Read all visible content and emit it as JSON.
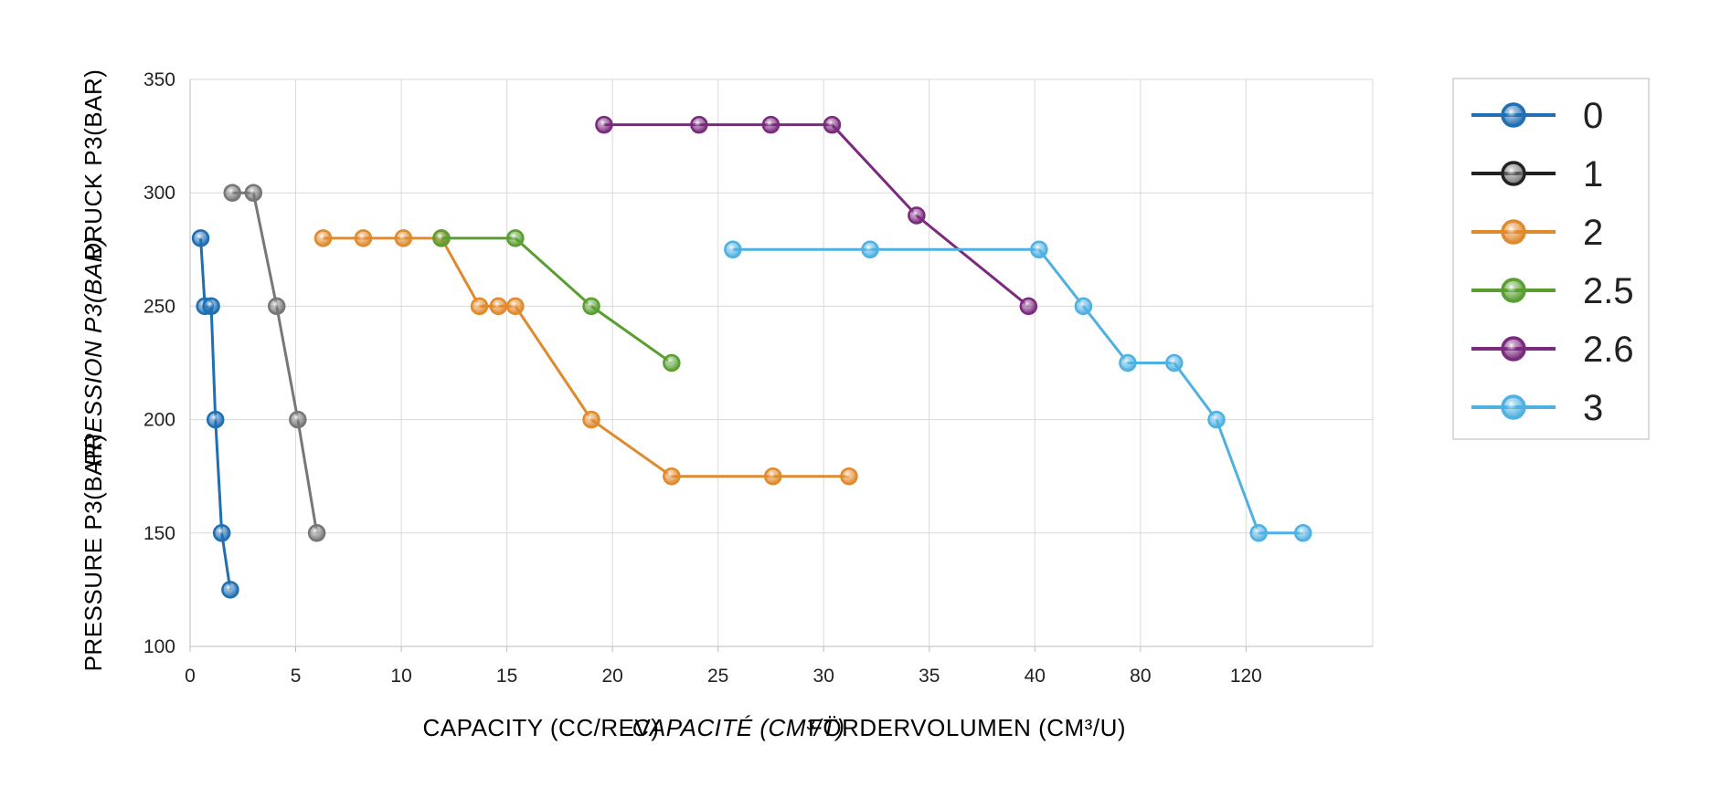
{
  "chart_data": {
    "type": "line",
    "title": "",
    "ylim": [
      100,
      350
    ],
    "yticks": [
      "100",
      "150",
      "200",
      "250",
      "300",
      "350"
    ],
    "xticks": [
      "0",
      "5",
      "10",
      "15",
      "20",
      "25",
      "30",
      "35",
      "40",
      "80",
      "120"
    ],
    "xtick_positions": [
      0,
      5,
      10,
      15,
      20,
      25,
      30,
      35,
      40,
      45,
      50
    ],
    "x_axis_note": "Scale is linear 0–40, then compressed: 40→80 and 80→120 each span the width of 5 units.",
    "xlabel": {
      "en": "CAPACITY (CC/REV)",
      "fr": "CAPACITÉ (CM³/T)",
      "de": "FÖRDERVOLUMEN (CM³/U)"
    },
    "ylabel": {
      "en": "PRESSURE P3(BAR)",
      "fr": "PRESSION P3(BAR)",
      "de": "DRUCK P3(BAR)"
    },
    "label_colors": {
      "en": "#222222",
      "fr": "#c9603a",
      "de": "#222222"
    },
    "grid": true,
    "legend_position": "right",
    "series": [
      {
        "name": "0",
        "color": "#1f6fb2",
        "points": [
          [
            0.5,
            280
          ],
          [
            0.7,
            250
          ],
          [
            1.0,
            250
          ],
          [
            1.2,
            200
          ],
          [
            1.5,
            150
          ],
          [
            1.9,
            125
          ]
        ]
      },
      {
        "name": "1",
        "color": "#777777",
        "legend_color": "#222222",
        "points": [
          [
            2.0,
            300
          ],
          [
            3.0,
            300
          ],
          [
            4.1,
            250
          ],
          [
            5.1,
            200
          ],
          [
            6.0,
            150
          ]
        ]
      },
      {
        "name": "2",
        "color": "#e08a2e",
        "points": [
          [
            6.3,
            280
          ],
          [
            8.2,
            280
          ],
          [
            10.1,
            280
          ],
          [
            11.9,
            280
          ],
          [
            13.7,
            250
          ],
          [
            14.6,
            250
          ],
          [
            15.4,
            250
          ],
          [
            19.0,
            200
          ],
          [
            22.8,
            175
          ],
          [
            27.6,
            175
          ],
          [
            31.2,
            175
          ]
        ]
      },
      {
        "name": "2.5",
        "color": "#5a9e32",
        "points": [
          [
            11.9,
            280
          ],
          [
            15.4,
            280
          ],
          [
            19.0,
            250
          ],
          [
            22.8,
            225
          ]
        ]
      },
      {
        "name": "2.6",
        "color": "#7b2b7e",
        "points": [
          [
            19.6,
            330
          ],
          [
            24.1,
            330
          ],
          [
            27.5,
            330
          ],
          [
            30.4,
            330
          ],
          [
            34.4,
            290
          ],
          [
            39.7,
            250
          ]
        ]
      },
      {
        "name": "3",
        "color": "#4fb0e2",
        "points": [
          [
            25.7,
            275
          ],
          [
            32.2,
            275
          ],
          [
            40.2,
            275
          ],
          [
            42.3,
            250
          ],
          [
            44.4,
            225
          ],
          [
            46.6,
            225
          ],
          [
            48.6,
            200
          ],
          [
            50.6,
            150
          ],
          [
            52.7,
            150
          ]
        ]
      }
    ]
  }
}
